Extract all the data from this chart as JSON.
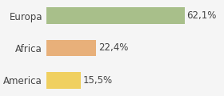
{
  "categories": [
    "America",
    "Africa",
    "Europa"
  ],
  "values": [
    15.5,
    22.4,
    62.1
  ],
  "labels": [
    "15,5%",
    "22,4%",
    "62,1%"
  ],
  "bar_colors": [
    "#f0d060",
    "#e8b07a",
    "#a8bf8a"
  ],
  "xlim": [
    0,
    78
  ],
  "background_color": "#f5f5f5",
  "bar_height": 0.52,
  "label_fontsize": 8.5,
  "tick_fontsize": 8.5
}
